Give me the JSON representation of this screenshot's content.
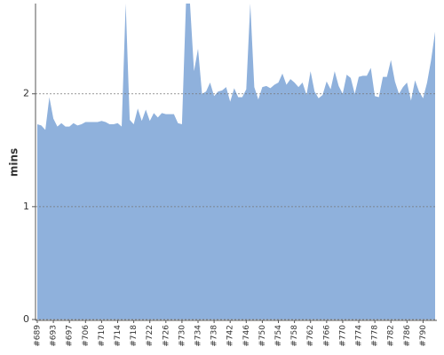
{
  "chart_data": {
    "type": "area",
    "y_label": "mins",
    "color": "#8fb1dc",
    "ylim": [
      0,
      2.8
    ],
    "yticks": [
      0,
      1,
      2
    ],
    "grid": true,
    "categories": [
      "#689",
      null,
      null,
      null,
      "#693",
      null,
      null,
      null,
      "#697",
      null,
      null,
      null,
      "#706",
      null,
      null,
      null,
      "#710",
      null,
      null,
      null,
      "#714",
      null,
      null,
      null,
      "#718",
      null,
      null,
      null,
      "#722",
      null,
      null,
      null,
      "#726",
      null,
      null,
      null,
      "#730",
      null,
      null,
      null,
      "#734",
      null,
      null,
      null,
      "#738",
      null,
      null,
      null,
      "#742",
      null,
      null,
      null,
      "#746",
      null,
      null,
      null,
      "#750",
      null,
      null,
      null,
      "#754",
      null,
      null,
      null,
      "#758",
      null,
      null,
      null,
      "#762",
      null,
      null,
      null,
      "#766",
      null,
      null,
      null,
      "#770",
      null,
      null,
      null,
      "#774",
      null,
      null,
      null,
      "#778",
      null,
      null,
      null,
      "#782",
      null,
      null,
      null,
      "#786",
      null,
      null,
      null,
      "#790",
      null,
      null,
      null
    ],
    "values": [
      1.73,
      1.72,
      1.68,
      1.97,
      1.78,
      1.71,
      1.74,
      1.71,
      1.71,
      1.74,
      1.72,
      1.73,
      1.75,
      1.75,
      1.75,
      1.75,
      1.76,
      1.75,
      1.73,
      1.73,
      1.74,
      1.71,
      2.8,
      1.77,
      1.73,
      1.87,
      1.76,
      1.86,
      1.76,
      1.83,
      1.79,
      1.83,
      1.82,
      1.82,
      1.82,
      1.74,
      1.73,
      2.8,
      2.8,
      2.2,
      2.4,
      2.0,
      2.02,
      2.1,
      1.98,
      2.02,
      2.03,
      2.06,
      1.93,
      2.05,
      1.97,
      1.97,
      2.04,
      2.8,
      2.06,
      1.95,
      2.06,
      2.07,
      2.05,
      2.08,
      2.1,
      2.18,
      2.08,
      2.13,
      2.1,
      2.06,
      2.1,
      1.99,
      2.2,
      2.02,
      1.96,
      1.99,
      2.11,
      2.04,
      2.2,
      2.07,
      2.0,
      2.17,
      2.14,
      2.0,
      2.15,
      2.16,
      2.16,
      2.23,
      1.98,
      1.97,
      2.15,
      2.15,
      2.3,
      2.11,
      2.0,
      2.06,
      2.1,
      1.94,
      2.12,
      2.02,
      1.96,
      2.1,
      2.3,
      2.55
    ]
  }
}
